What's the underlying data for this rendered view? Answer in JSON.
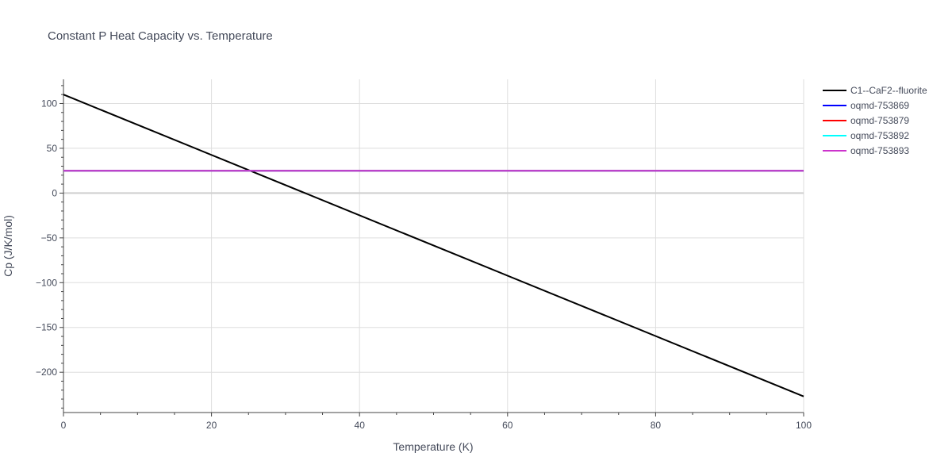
{
  "chart_data": {
    "type": "line",
    "title": "Constant P Heat Capacity vs. Temperature",
    "xlabel": "Temperature (K)",
    "ylabel": "Cp (J/K/mol)",
    "xlim": [
      0,
      100
    ],
    "ylim": [
      -245,
      127
    ],
    "x_ticks": [
      0,
      20,
      40,
      60,
      80,
      100
    ],
    "y_ticks": [
      100,
      50,
      0,
      -50,
      -100,
      -150,
      -200
    ],
    "y_tick_labels": [
      "100",
      "50",
      "0",
      "−50",
      "−100",
      "−150",
      "−200"
    ],
    "grid": true,
    "legend_position": "top-right",
    "series": [
      {
        "name": "C1--CaF2--fluorite",
        "color": "#000000",
        "x": [
          0,
          100
        ],
        "y": [
          110,
          -227
        ]
      },
      {
        "name": "oqmd-753869",
        "color": "#0000ff",
        "x": [
          0,
          100
        ],
        "y": [
          25,
          25
        ]
      },
      {
        "name": "oqmd-753879",
        "color": "#ff0000",
        "x": [
          0,
          100
        ],
        "y": [
          25,
          25
        ]
      },
      {
        "name": "oqmd-753892",
        "color": "#00ffff",
        "x": [
          0,
          100
        ],
        "y": [
          25,
          25
        ]
      },
      {
        "name": "oqmd-753893",
        "color": "#cc33cc",
        "x": [
          0,
          100
        ],
        "y": [
          25,
          25
        ]
      }
    ]
  }
}
